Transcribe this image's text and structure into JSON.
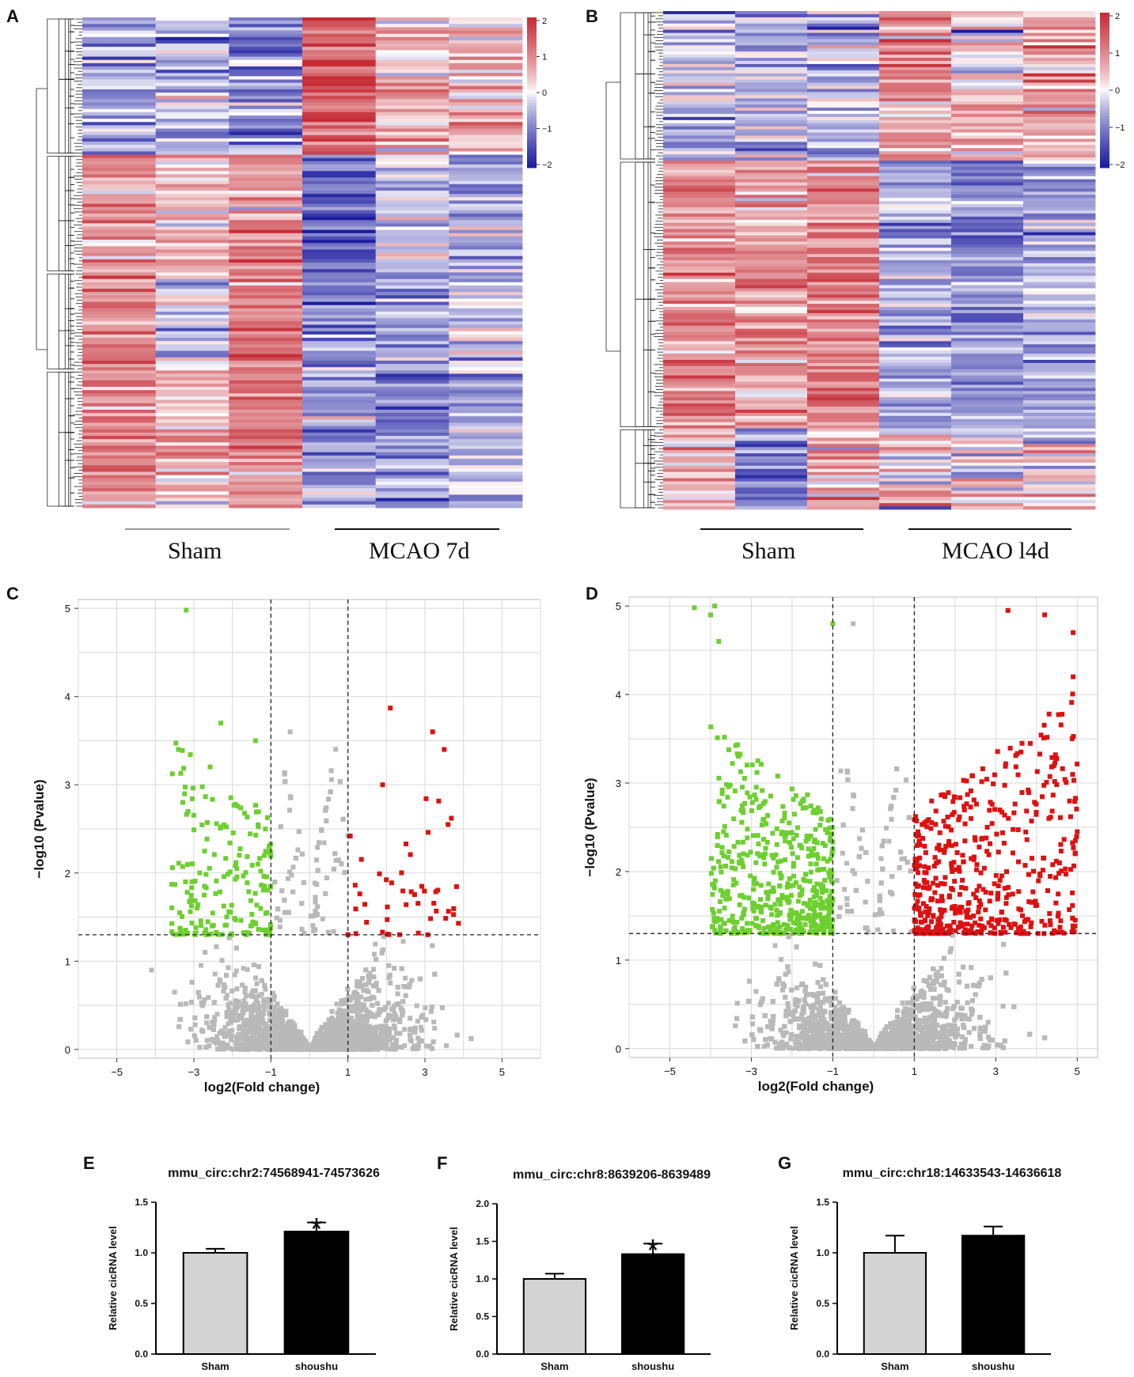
{
  "panels": {
    "a": "A",
    "b": "B",
    "c": "C",
    "d": "D",
    "e": "E",
    "f": "F",
    "g": "G"
  },
  "colors": {
    "heat_high": "#c62d37",
    "heat_mid": "#ffffff",
    "heat_low": "#1c1ca0",
    "volcano_up": "#dd1111",
    "volcano_down": "#6ecf30",
    "volcano_ns": "#b9b9b9",
    "bar_sham": "#d3d3d3",
    "bar_shoushu": "#000000"
  },
  "chart_data": [
    {
      "id": "A",
      "type": "heatmap",
      "colorbar": {
        "ticks": [
          "2",
          "1",
          "0",
          "−1",
          "−2"
        ],
        "range": [
          -2,
          2
        ]
      },
      "groups": [
        "Sham",
        "MCAO 7d"
      ],
      "columns_per_group": 3,
      "pattern": "up-block then down-block",
      "dendrogram": true
    },
    {
      "id": "B",
      "type": "heatmap",
      "colorbar": {
        "ticks": [
          "2",
          "1",
          "0",
          "−1",
          "−2"
        ],
        "range": [
          -2,
          2
        ]
      },
      "groups": [
        "Sham",
        "MCAO l4d"
      ],
      "columns_per_group": 3,
      "pattern": "up-block then down-block",
      "dendrogram": true
    },
    {
      "id": "C",
      "type": "scatter",
      "subtype": "volcano",
      "xlabel": "log2(Fold change)",
      "ylabel": "−log10 (Pvalue)",
      "xlim": [
        -6,
        6
      ],
      "ylim": [
        -0.1,
        5.1
      ],
      "xticks": [
        "−5",
        "−3",
        "−1",
        "1",
        "3",
        "5"
      ],
      "yticks": [
        "0",
        "1",
        "2",
        "3",
        "4",
        "5"
      ],
      "fc_cutoff": [
        -1,
        1
      ],
      "p_cutoff": 1.3,
      "grid": true,
      "highlight_points": [
        {
          "x": -3.2,
          "y": 4.98,
          "class": "down"
        },
        {
          "x": -2.3,
          "y": 3.7,
          "class": "down"
        },
        {
          "x": -1.4,
          "y": 3.5,
          "class": "down"
        },
        {
          "x": -3.4,
          "y": 3.4,
          "class": "down"
        },
        {
          "x": 2.1,
          "y": 3.87,
          "class": "up"
        },
        {
          "x": 3.2,
          "y": 3.6,
          "class": "up"
        },
        {
          "x": 3.5,
          "y": 3.4,
          "class": "up"
        },
        {
          "x": 1.9,
          "y": 3.0,
          "class": "up"
        },
        {
          "x": 3.6,
          "y": 2.55,
          "class": "up"
        },
        {
          "x": -0.5,
          "y": 3.6,
          "class": "ns"
        },
        {
          "x": -4.1,
          "y": 0.9,
          "class": "ns"
        }
      ]
    },
    {
      "id": "D",
      "type": "scatter",
      "subtype": "volcano",
      "xlabel": "log2(Fold change)",
      "ylabel": "−log10 (Pvalue)",
      "xlim": [
        -6,
        5.5
      ],
      "ylim": [
        -0.1,
        5.1
      ],
      "xticks": [
        "−5",
        "−3",
        "−1",
        "1",
        "3",
        "5"
      ],
      "yticks": [
        "0",
        "1",
        "2",
        "3",
        "4",
        "5"
      ],
      "fc_cutoff": [
        -1,
        1
      ],
      "p_cutoff": 1.3,
      "grid": true,
      "highlight_points": [
        {
          "x": -4.4,
          "y": 4.98,
          "class": "down"
        },
        {
          "x": -3.9,
          "y": 5.0,
          "class": "down"
        },
        {
          "x": -4.0,
          "y": 4.9,
          "class": "down"
        },
        {
          "x": -3.8,
          "y": 4.6,
          "class": "down"
        },
        {
          "x": -1.0,
          "y": 4.8,
          "class": "down"
        },
        {
          "x": 4.2,
          "y": 4.9,
          "class": "up"
        },
        {
          "x": 3.3,
          "y": 4.95,
          "class": "up"
        },
        {
          "x": 4.9,
          "y": 4.7,
          "class": "up"
        },
        {
          "x": 4.9,
          "y": 4.2,
          "class": "up"
        },
        {
          "x": 5.0,
          "y": 2.45,
          "class": "up"
        },
        {
          "x": -0.5,
          "y": 4.8,
          "class": "ns"
        }
      ]
    },
    {
      "id": "E",
      "type": "bar",
      "title": "mmu_circ:chr2:74568941-74573626",
      "ylabel": "Relative cicRNA level",
      "categories": [
        "Sham",
        "shoushu"
      ],
      "values": [
        1.0,
        1.21
      ],
      "errors": [
        0.04,
        0.09
      ],
      "significance": [
        "",
        "*"
      ],
      "ylim": [
        0,
        1.5
      ],
      "yticks": [
        "0.0",
        "0.5",
        "1.0",
        "1.5"
      ]
    },
    {
      "id": "F",
      "type": "bar",
      "title": "mmu_circ:chr8:8639206-8639489",
      "ylabel": "Relative cicRNA level",
      "categories": [
        "Sham",
        "shoushu"
      ],
      "values": [
        1.0,
        1.33
      ],
      "errors": [
        0.07,
        0.14
      ],
      "significance": [
        "",
        "*"
      ],
      "ylim": [
        0,
        2.0
      ],
      "yticks": [
        "0.0",
        "0.5",
        "1.0",
        "1.5",
        "2.0"
      ]
    },
    {
      "id": "G",
      "type": "bar",
      "title": "mmu_circ:chr18:14633543-14636618",
      "ylabel": "Relative cicRNA level",
      "categories": [
        "Sham",
        "shoushu"
      ],
      "values": [
        1.0,
        1.17
      ],
      "errors": [
        0.17,
        0.09
      ],
      "significance": [
        "",
        ""
      ],
      "ylim": [
        0,
        1.5
      ],
      "yticks": [
        "0.0",
        "0.5",
        "1.0",
        "1.5"
      ]
    }
  ]
}
